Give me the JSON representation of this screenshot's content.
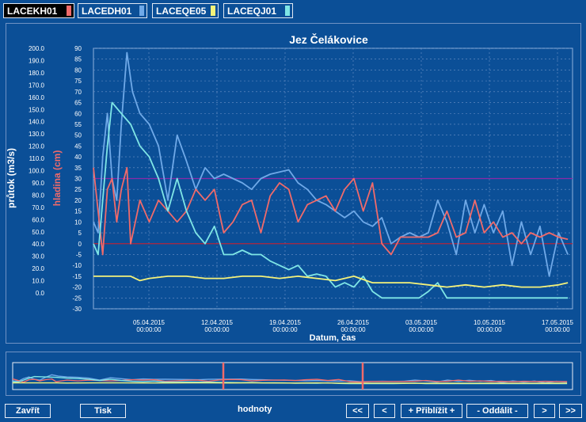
{
  "tabs": [
    {
      "label": "LACEKH01",
      "color": "#f06a6a",
      "active": true
    },
    {
      "label": "LACEDH01",
      "color": "#6fa9e8",
      "active": false
    },
    {
      "label": "LACEQE05",
      "color": "#f5f27a",
      "active": false
    },
    {
      "label": "LACEQJ01",
      "color": "#7fe6e6",
      "active": false
    }
  ],
  "chart_data": {
    "type": "line",
    "title": "Jez Čelákovice",
    "xlabel": "Datum, čas",
    "ylabel_left": "průtok (m3/s)",
    "ylabel_right": "hladina (cm)",
    "left_ticks": [
      "200.0",
      "190.0",
      "180.0",
      "170.0",
      "160.0",
      "150.0",
      "140.0",
      "130.0",
      "120.0",
      "110.0",
      "100.0",
      "90.0",
      "80.0",
      "70.0",
      "60.0",
      "50.0",
      "40.0",
      "30.0",
      "20.0",
      "10.0",
      "0.0"
    ],
    "right_ticks": [
      "90",
      "85",
      "80",
      "75",
      "70",
      "65",
      "60",
      "55",
      "50",
      "45",
      "40",
      "35",
      "30",
      "25",
      "20",
      "15",
      "10",
      "5",
      "0",
      "-5",
      "-10",
      "-15",
      "-20",
      "-25",
      "-30"
    ],
    "x_ticks": [
      {
        "date": "05.04.2015",
        "time": "00:00:00"
      },
      {
        "date": "12.04.2015",
        "time": "00:00:00"
      },
      {
        "date": "19.04.2015",
        "time": "00:00:00"
      },
      {
        "date": "26.04.2015",
        "time": "00:00:00"
      },
      {
        "date": "03.05.2015",
        "time": "00:00:00"
      },
      {
        "date": "10.05.2015",
        "time": "00:00:00"
      },
      {
        "date": "17.05.2015",
        "time": "00:00:00"
      }
    ],
    "x_range_days": [
      0,
      51.5
    ],
    "reference_lines": [
      {
        "value": 30,
        "color": "#8a2aa8"
      },
      {
        "value": 0,
        "color": "#b3243d"
      }
    ],
    "series": [
      {
        "name": "LACEDH01",
        "color": "#6fa9e8",
        "values": [
          [
            0,
            10
          ],
          [
            0.5,
            5
          ],
          [
            1,
            40
          ],
          [
            1.5,
            60
          ],
          [
            2,
            30
          ],
          [
            2.5,
            20
          ],
          [
            3,
            55
          ],
          [
            3.6,
            88
          ],
          [
            4.2,
            70
          ],
          [
            5,
            60
          ],
          [
            6,
            55
          ],
          [
            7,
            45
          ],
          [
            8,
            20
          ],
          [
            9,
            50
          ],
          [
            10,
            38
          ],
          [
            11,
            25
          ],
          [
            12,
            35
          ],
          [
            13,
            30
          ],
          [
            14,
            32
          ],
          [
            16,
            28
          ],
          [
            17,
            25
          ],
          [
            18,
            30
          ],
          [
            19,
            32
          ],
          [
            21,
            34
          ],
          [
            22,
            28
          ],
          [
            23,
            25
          ],
          [
            24,
            20
          ],
          [
            25,
            18
          ],
          [
            26,
            15
          ],
          [
            27,
            12
          ],
          [
            28,
            15
          ],
          [
            29,
            10
          ],
          [
            30,
            8
          ],
          [
            31,
            12
          ],
          [
            32,
            0
          ],
          [
            33,
            3
          ],
          [
            34,
            5
          ],
          [
            35,
            3
          ],
          [
            36,
            5
          ],
          [
            37,
            20
          ],
          [
            38,
            10
          ],
          [
            39,
            -5
          ],
          [
            40,
            20
          ],
          [
            41,
            5
          ],
          [
            42,
            18
          ],
          [
            43,
            5
          ],
          [
            44,
            15
          ],
          [
            45,
            -10
          ],
          [
            46,
            10
          ],
          [
            47,
            -5
          ],
          [
            48,
            8
          ],
          [
            49,
            -15
          ],
          [
            50,
            5
          ],
          [
            51,
            -5
          ]
        ]
      },
      {
        "name": "LACEKH01",
        "color": "#f06a6a",
        "values": [
          [
            0,
            35
          ],
          [
            0.5,
            15
          ],
          [
            1,
            -5
          ],
          [
            1.5,
            25
          ],
          [
            2,
            30
          ],
          [
            2.5,
            10
          ],
          [
            3,
            25
          ],
          [
            3.6,
            35
          ],
          [
            4,
            0
          ],
          [
            4.5,
            10
          ],
          [
            5,
            20
          ],
          [
            6,
            10
          ],
          [
            7,
            20
          ],
          [
            8,
            15
          ],
          [
            9,
            10
          ],
          [
            10,
            15
          ],
          [
            11,
            25
          ],
          [
            12,
            20
          ],
          [
            13,
            25
          ],
          [
            14,
            5
          ],
          [
            15,
            10
          ],
          [
            16,
            18
          ],
          [
            17,
            20
          ],
          [
            18,
            5
          ],
          [
            19,
            22
          ],
          [
            20,
            28
          ],
          [
            21,
            25
          ],
          [
            22,
            10
          ],
          [
            23,
            18
          ],
          [
            24,
            20
          ],
          [
            25,
            22
          ],
          [
            26,
            15
          ],
          [
            27,
            25
          ],
          [
            28,
            30
          ],
          [
            29,
            15
          ],
          [
            30,
            28
          ],
          [
            31,
            0
          ],
          [
            32,
            -5
          ],
          [
            33,
            3
          ],
          [
            34,
            3
          ],
          [
            35,
            3
          ],
          [
            36,
            3
          ],
          [
            37,
            5
          ],
          [
            38,
            15
          ],
          [
            39,
            3
          ],
          [
            40,
            5
          ],
          [
            41,
            20
          ],
          [
            42,
            5
          ],
          [
            43,
            10
          ],
          [
            44,
            3
          ],
          [
            45,
            5
          ],
          [
            46,
            0
          ],
          [
            47,
            5
          ],
          [
            48,
            3
          ],
          [
            49,
            5
          ],
          [
            50,
            3
          ],
          [
            51,
            2
          ]
        ]
      },
      {
        "name": "LACEQJ01",
        "color": "#7fe6e6",
        "values": [
          [
            0,
            0
          ],
          [
            0.5,
            -5
          ],
          [
            1,
            20
          ],
          [
            1.5,
            45
          ],
          [
            2,
            65
          ],
          [
            3,
            60
          ],
          [
            4,
            55
          ],
          [
            5,
            45
          ],
          [
            6,
            40
          ],
          [
            7,
            30
          ],
          [
            8,
            15
          ],
          [
            9,
            30
          ],
          [
            10,
            15
          ],
          [
            11,
            5
          ],
          [
            12,
            0
          ],
          [
            13,
            8
          ],
          [
            14,
            -5
          ],
          [
            15,
            -5
          ],
          [
            16,
            -3
          ],
          [
            17,
            -5
          ],
          [
            18,
            -5
          ],
          [
            19,
            -8
          ],
          [
            20,
            -10
          ],
          [
            21,
            -12
          ],
          [
            22,
            -10
          ],
          [
            23,
            -15
          ],
          [
            24,
            -14
          ],
          [
            25,
            -15
          ],
          [
            26,
            -20
          ],
          [
            27,
            -18
          ],
          [
            28,
            -20
          ],
          [
            29,
            -15
          ],
          [
            30,
            -22
          ],
          [
            31,
            -25
          ],
          [
            33,
            -25
          ],
          [
            35,
            -25
          ],
          [
            36,
            -22
          ],
          [
            37,
            -18
          ],
          [
            38,
            -25
          ],
          [
            40,
            -25
          ],
          [
            42,
            -25
          ],
          [
            44,
            -25
          ],
          [
            46,
            -25
          ],
          [
            48,
            -25
          ],
          [
            51,
            -25
          ]
        ]
      },
      {
        "name": "LACEQE05",
        "color": "#f5f27a",
        "values": [
          [
            0,
            -15
          ],
          [
            2,
            -15
          ],
          [
            4,
            -15
          ],
          [
            5,
            -17
          ],
          [
            6,
            -16
          ],
          [
            8,
            -15
          ],
          [
            10,
            -15
          ],
          [
            12,
            -16
          ],
          [
            14,
            -16
          ],
          [
            16,
            -15
          ],
          [
            18,
            -15
          ],
          [
            20,
            -16
          ],
          [
            22,
            -15
          ],
          [
            24,
            -16
          ],
          [
            26,
            -17
          ],
          [
            28,
            -15
          ],
          [
            30,
            -18
          ],
          [
            32,
            -18
          ],
          [
            34,
            -18
          ],
          [
            36,
            -19
          ],
          [
            38,
            -20
          ],
          [
            40,
            -19
          ],
          [
            42,
            -20
          ],
          [
            44,
            -19
          ],
          [
            46,
            -20
          ],
          [
            48,
            -20
          ],
          [
            50,
            -19
          ],
          [
            51,
            -18
          ]
        ]
      }
    ]
  },
  "buttons": {
    "close": "Zavřít",
    "print": "Tisk",
    "first": "<<",
    "prev": "<",
    "zoom_in": "+ Přiblížit +",
    "zoom_out": "- Oddálit -",
    "next": ">",
    "last": ">>"
  },
  "status_label": "hodnoty"
}
